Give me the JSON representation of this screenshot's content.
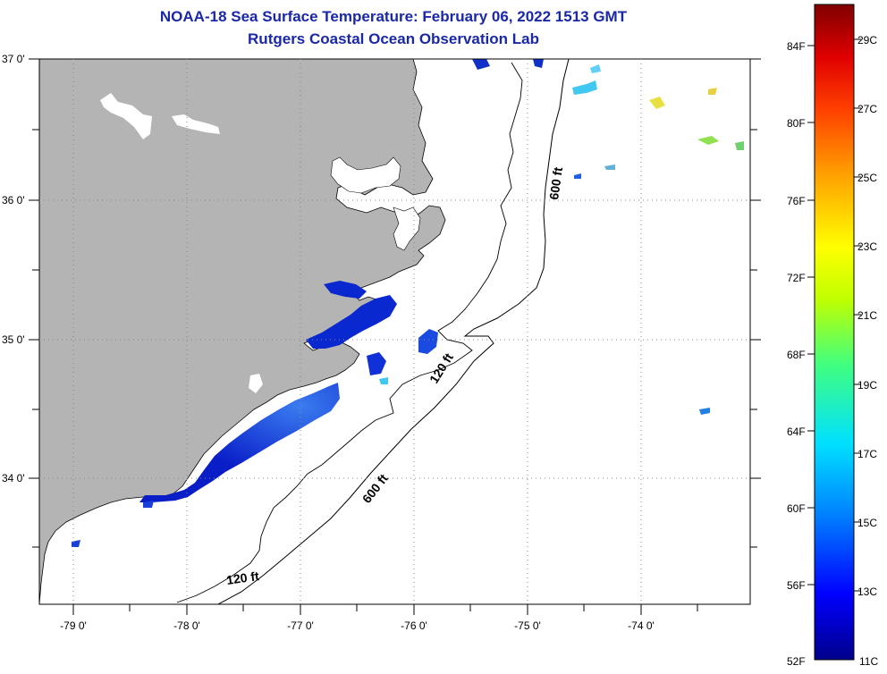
{
  "header": {
    "title": "NOAA-18 Sea Surface Temperature:  February 06, 2022 1513 GMT",
    "subtitle": "Rutgers Coastal Ocean Observation Lab"
  },
  "map": {
    "lat_labels": [
      "37 0'",
      "36 0'",
      "35 0'",
      "34 0'"
    ],
    "lon_labels": [
      "-79 0'",
      "-78 0'",
      "-77 0'",
      "-76 0'",
      "-75 0'",
      "-74 0'"
    ],
    "contour_labels": [
      {
        "id": "c600-north",
        "text": "600 ft"
      },
      {
        "id": "c120-mid",
        "text": "120 ft"
      },
      {
        "id": "c600-south",
        "text": "600 ft"
      },
      {
        "id": "c120-south",
        "text": "120 ft"
      }
    ],
    "colors": {
      "land": "#b4b4b4",
      "ocean": "#ffffff",
      "cold_water": "#0a1ec8"
    }
  },
  "colorbar": {
    "fahrenheit_labels": [
      "84F",
      "80F",
      "76F",
      "72F",
      "68F",
      "64F",
      "60F",
      "56F",
      "52F"
    ],
    "celsius_labels": [
      "29C",
      "27C",
      "25C",
      "23C",
      "21C",
      "19C",
      "17C",
      "15C",
      "13C",
      "11C"
    ],
    "gradient": [
      "#00008c",
      "#0000ff",
      "#0080ff",
      "#00e0ff",
      "#40ff80",
      "#c0ff00",
      "#ffff00",
      "#ffa000",
      "#ff4000",
      "#e00000",
      "#800000"
    ]
  }
}
